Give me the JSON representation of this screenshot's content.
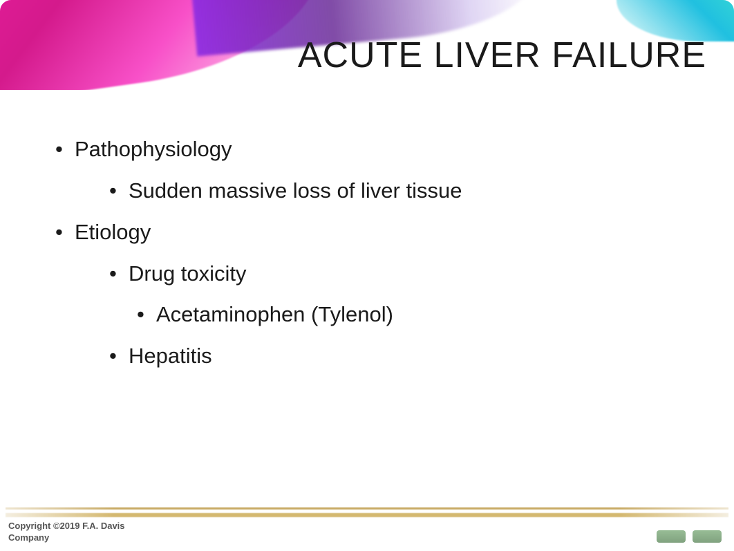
{
  "slide": {
    "title": "ACUTE LIVER FAILURE",
    "title_fontsize": 52,
    "title_color": "#1a1a1a",
    "background_color": "#ffffff",
    "bullets": [
      {
        "level": 1,
        "text": "Pathophysiology"
      },
      {
        "level": 2,
        "text": "Sudden massive loss of liver tissue"
      },
      {
        "level": 1,
        "text": "Etiology"
      },
      {
        "level": 2,
        "text": "Drug toxicity"
      },
      {
        "level": 3,
        "text": "Acetaminophen (Tylenol)"
      },
      {
        "level": 2,
        "text": "Hepatitis"
      }
    ],
    "bullet_fontsize": 31,
    "bullet_color": "#1a1a1a"
  },
  "decoration": {
    "swoosh_colors": {
      "magenta": "#e91e9e",
      "magenta_light": "#f850c8",
      "purple": "#8a2be2",
      "indigo": "#4b0082",
      "cyan": "#40e0d0"
    }
  },
  "footer": {
    "copyright_line1": "Copyright ©2019 F.A. Davis",
    "copyright_line2": "Company",
    "copyright_color": "#555555",
    "copyright_fontsize": 13,
    "line_color": "#c8aa64",
    "button_color": "#4a7a48"
  }
}
